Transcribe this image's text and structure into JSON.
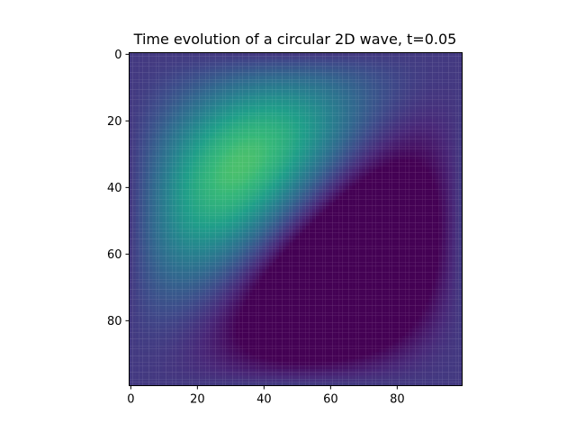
{
  "chart_data": {
    "type": "heatmap",
    "title": "Time evolution of a circular 2D wave, t=0.05",
    "xlabel": "",
    "ylabel": "",
    "colormap": "viridis",
    "grid": false,
    "legend": "none",
    "x_range": [
      -0.5,
      99.5
    ],
    "y_range": [
      99.5,
      -0.5
    ],
    "x_ticks": [
      0,
      20,
      40,
      60,
      80
    ],
    "y_ticks": [
      0,
      20,
      40,
      60,
      80
    ],
    "x_tick_labels": [
      "0",
      "20",
      "40",
      "60",
      "80"
    ],
    "y_tick_labels": [
      "0",
      "20",
      "40",
      "60",
      "80"
    ],
    "grid_size": [
      100,
      100
    ],
    "value_range": [
      -0.2,
      1.0
    ],
    "field": "sin(pi*x/99) * sin(pi*y/99) * sin(pi*x/99 + pi*y/99)"
  }
}
